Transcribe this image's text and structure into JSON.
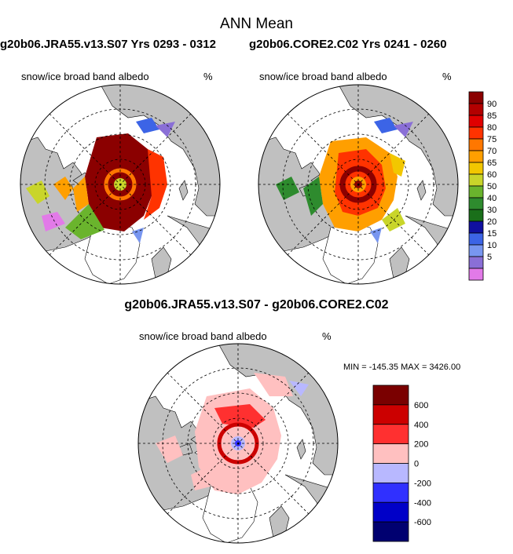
{
  "title": "ANN Mean",
  "panels": [
    {
      "case": "g20b06.JRA55.v13.S07  Yrs 0293 - 0312",
      "variable": "snow/ice broad band albedo",
      "unit": "%"
    },
    {
      "case": "g20b06.CORE2.C02  Yrs 0241 - 0260",
      "variable": "snow/ice broad band albedo",
      "unit": "%"
    }
  ],
  "diff_panel": {
    "title": "g20b06.JRA55.v13.S07 - g20b06.CORE2.C02",
    "variable": "snow/ice broad band albedo",
    "unit": "%",
    "minmax": "MIN = -145.35 MAX = 3426.00"
  },
  "colors": {
    "land": "#c0c0c0",
    "ocean": "#ffffff"
  },
  "chart_data": [
    {
      "type": "heatmap",
      "name": "mean-colorbar",
      "levels": [
        90,
        85,
        80,
        75,
        70,
        65,
        60,
        50,
        40,
        30,
        20,
        15,
        10,
        5
      ],
      "colors": [
        "#8b0000",
        "#b30000",
        "#e00000",
        "#ff3300",
        "#ff7700",
        "#ff9f00",
        "#f2c700",
        "#c9d52a",
        "#6ab42d",
        "#2e8b2e",
        "#1a6f1a",
        "#1010a0",
        "#3c64e6",
        "#7896f0",
        "#8a6fd6",
        "#e27ae8"
      ]
    },
    {
      "type": "heatmap",
      "name": "diff-colorbar",
      "levels": [
        600,
        400,
        200,
        0,
        -200,
        -400,
        -600
      ],
      "colors": [
        "#7a0000",
        "#cc0000",
        "#ff3030",
        "#ffc0c0",
        "#b8b8ff",
        "#3030ff",
        "#0000c8",
        "#000070"
      ]
    }
  ]
}
